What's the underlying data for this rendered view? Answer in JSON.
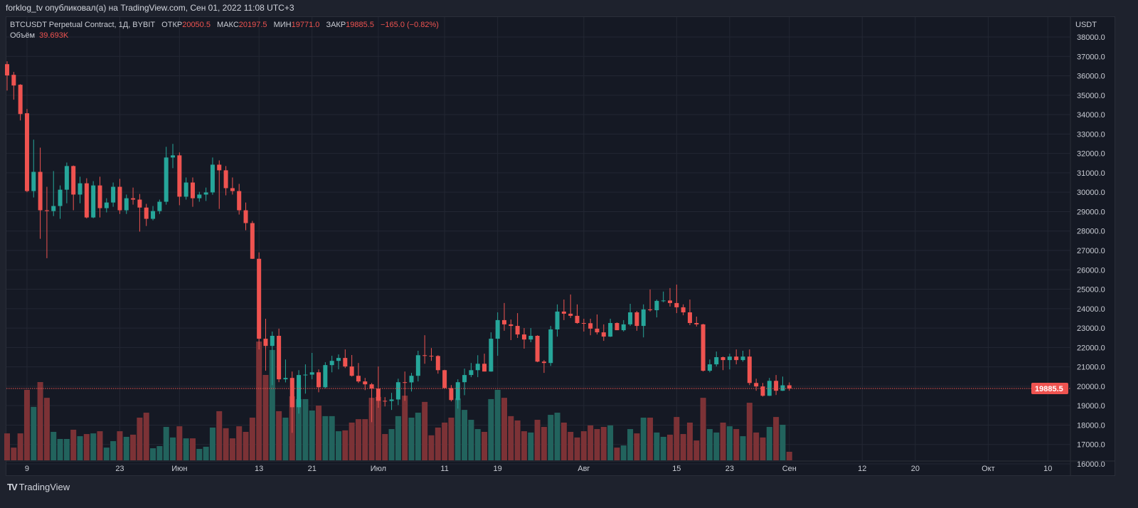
{
  "published_line": "forklog_tv опубликовал(а) на TradingView.com, Сен 01, 2022 11:08 UTC+3",
  "legend": {
    "symbol": "BTCUSDT Perpetual Contract, 1Д, BYBIT",
    "open_label": "ОТКР",
    "open": "20050.5",
    "high_label": "МАКС",
    "high": "20197.5",
    "low_label": "МИН",
    "low": "19771.0",
    "close_label": "ЗАКР",
    "close": "19885.5",
    "change": "−165.0 (−0.82%)",
    "volume_label": "Объём",
    "volume": "39.693K"
  },
  "footer": {
    "logo_glyph": "TV",
    "brand": "TradingView"
  },
  "colors": {
    "up": "#26a69a",
    "down": "#ef5350",
    "up_volume": "#22635d",
    "down_volume": "#7c3236",
    "grid": "#232733",
    "background": "#151924"
  },
  "chart_data": {
    "type": "candlestick",
    "title": "BTCUSDT Perpetual Contract, 1Д, BYBIT",
    "currency_label": "USDT",
    "ylim": [
      16000,
      38000
    ],
    "y_ticks": [
      "16000.0",
      "17000.0",
      "18000.0",
      "19000.0",
      "20000.0",
      "21000.0",
      "22000.0",
      "23000.0",
      "24000.0",
      "25000.0",
      "26000.0",
      "27000.0",
      "28000.0",
      "29000.0",
      "30000.0",
      "31000.0",
      "32000.0",
      "33000.0",
      "34000.0",
      "35000.0",
      "36000.0",
      "37000.0",
      "38000.0"
    ],
    "last_price": 19885.5,
    "last_price_label": "19885.5",
    "x_range_days": [
      0,
      161
    ],
    "x_ticks": [
      {
        "label": "9",
        "index": 3
      },
      {
        "label": "23",
        "index": 17
      },
      {
        "label": "Июн",
        "index": 26
      },
      {
        "label": "13",
        "index": 38
      },
      {
        "label": "21",
        "index": 46
      },
      {
        "label": "Июл",
        "index": 56
      },
      {
        "label": "11",
        "index": 66
      },
      {
        "label": "19",
        "index": 74
      },
      {
        "label": "Авг",
        "index": 87
      },
      {
        "label": "15",
        "index": 101
      },
      {
        "label": "23",
        "index": 109
      },
      {
        "label": "Сен",
        "index": 118
      },
      {
        "label": "12",
        "index": 129
      },
      {
        "label": "20",
        "index": 137
      },
      {
        "label": "Окт",
        "index": 148
      },
      {
        "label": "10",
        "index": 157
      }
    ],
    "ohlc": [
      [
        36600,
        36750,
        35240,
        36020
      ],
      [
        36050,
        36200,
        34770,
        35500
      ],
      [
        35540,
        35570,
        33700,
        34030
      ],
      [
        34070,
        34290,
        30000,
        30060
      ],
      [
        30060,
        32710,
        29730,
        31050
      ],
      [
        31050,
        32300,
        27600,
        29070
      ],
      [
        29070,
        30280,
        26600,
        29030
      ],
      [
        29030,
        31090,
        28770,
        29290
      ],
      [
        29290,
        30350,
        28630,
        30130
      ],
      [
        30130,
        31530,
        29430,
        31350
      ],
      [
        31350,
        31380,
        29070,
        29880
      ],
      [
        29880,
        30800,
        29430,
        30460
      ],
      [
        30460,
        30720,
        28650,
        28700
      ],
      [
        28700,
        30570,
        28660,
        30350
      ],
      [
        30350,
        30800,
        28700,
        29180
      ],
      [
        29180,
        29690,
        28960,
        29470
      ],
      [
        29470,
        30500,
        29250,
        30280
      ],
      [
        30280,
        30690,
        28880,
        29070
      ],
      [
        29070,
        29880,
        28880,
        29690
      ],
      [
        29690,
        30240,
        29360,
        29620
      ],
      [
        29620,
        29910,
        27970,
        29210
      ],
      [
        29210,
        29400,
        28260,
        28630
      ],
      [
        28630,
        29290,
        28550,
        29030
      ],
      [
        29030,
        29620,
        28880,
        29510
      ],
      [
        29510,
        32340,
        29360,
        31790
      ],
      [
        31790,
        32490,
        31240,
        31900
      ],
      [
        31900,
        32050,
        29330,
        29770
      ],
      [
        29770,
        30760,
        29620,
        30500
      ],
      [
        30500,
        30760,
        29250,
        29690
      ],
      [
        29690,
        30020,
        29510,
        29880
      ],
      [
        29880,
        30240,
        29550,
        29990
      ],
      [
        29990,
        31790,
        29870,
        31420
      ],
      [
        31420,
        31640,
        29140,
        31130
      ],
      [
        31130,
        31350,
        29840,
        30210
      ],
      [
        30210,
        30760,
        29880,
        30060
      ],
      [
        30060,
        30430,
        28850,
        29070
      ],
      [
        29070,
        29470,
        28040,
        28410
      ],
      [
        28410,
        28520,
        26560,
        26570
      ],
      [
        26570,
        26900,
        21900,
        22450
      ],
      [
        22450,
        23480,
        20800,
        22080
      ],
      [
        22080,
        22820,
        20060,
        22600
      ],
      [
        22600,
        22970,
        20210,
        20360
      ],
      [
        20360,
        21380,
        20200,
        20430
      ],
      [
        20430,
        20760,
        17600,
        18920
      ],
      [
        18920,
        20830,
        18590,
        20580
      ],
      [
        20580,
        21130,
        19620,
        20600
      ],
      [
        20600,
        21720,
        20360,
        20720
      ],
      [
        20720,
        20870,
        19690,
        19950
      ],
      [
        19950,
        21240,
        19880,
        21090
      ],
      [
        21090,
        21570,
        20720,
        21310
      ],
      [
        21310,
        21640,
        20870,
        21460
      ],
      [
        21460,
        21900,
        20940,
        21020
      ],
      [
        21020,
        21610,
        20500,
        20540
      ],
      [
        20540,
        21200,
        20170,
        20250
      ],
      [
        20250,
        20430,
        19800,
        20100
      ],
      [
        20100,
        20170,
        18150,
        19880
      ],
      [
        19880,
        21020,
        18890,
        19250
      ],
      [
        19250,
        19440,
        18960,
        19240
      ],
      [
        19240,
        19660,
        18780,
        19320
      ],
      [
        19320,
        20390,
        19030,
        20210
      ],
      [
        20210,
        20760,
        19250,
        20200
      ],
      [
        20200,
        20690,
        19730,
        20540
      ],
      [
        20540,
        21830,
        20250,
        21600
      ],
      [
        21600,
        22630,
        21160,
        21570
      ],
      [
        21570,
        21970,
        21310,
        21560
      ],
      [
        21560,
        21600,
        20650,
        20830
      ],
      [
        20830,
        20850,
        19900,
        19910
      ],
      [
        19910,
        20060,
        19220,
        19290
      ],
      [
        19290,
        20360,
        18850,
        20210
      ],
      [
        20210,
        20910,
        19540,
        20580
      ],
      [
        20580,
        21200,
        20470,
        20830
      ],
      [
        20830,
        21600,
        20470,
        21160
      ],
      [
        21160,
        21680,
        20760,
        20760
      ],
      [
        20760,
        22780,
        20750,
        22450
      ],
      [
        22450,
        23810,
        21570,
        23410
      ],
      [
        23410,
        24290,
        22860,
        23190
      ],
      [
        23190,
        23440,
        22380,
        23110
      ],
      [
        23110,
        23770,
        22490,
        22670
      ],
      [
        22670,
        23000,
        21940,
        22410
      ],
      [
        22410,
        23000,
        22270,
        22600
      ],
      [
        22600,
        22630,
        21240,
        21270
      ],
      [
        21270,
        21350,
        20690,
        21200
      ],
      [
        21200,
        23110,
        21050,
        22930
      ],
      [
        22930,
        24220,
        22560,
        23850
      ],
      [
        23850,
        24470,
        23410,
        23740
      ],
      [
        23740,
        24730,
        23520,
        23630
      ],
      [
        23630,
        24220,
        23220,
        23260
      ],
      [
        23260,
        23480,
        22820,
        23250
      ],
      [
        23250,
        23480,
        22630,
        22970
      ],
      [
        22970,
        23700,
        22670,
        22780
      ],
      [
        22780,
        23190,
        22340,
        22560
      ],
      [
        22560,
        23480,
        22540,
        23260
      ],
      [
        23260,
        23290,
        22890,
        22890
      ],
      [
        22890,
        23410,
        22820,
        23190
      ],
      [
        23190,
        24250,
        23110,
        23810
      ],
      [
        23810,
        23880,
        22860,
        23110
      ],
      [
        23110,
        24220,
        22520,
        23960
      ],
      [
        23960,
        24990,
        23850,
        23920
      ],
      [
        23920,
        24470,
        23550,
        24400
      ],
      [
        24400,
        24880,
        24330,
        24420
      ],
      [
        24420,
        25060,
        24110,
        24290
      ],
      [
        24290,
        25240,
        23770,
        24070
      ],
      [
        24070,
        24220,
        23660,
        23810
      ],
      [
        23810,
        24470,
        23150,
        23260
      ],
      [
        23260,
        23590,
        23080,
        23190
      ],
      [
        23190,
        23220,
        20760,
        20800
      ],
      [
        20800,
        21380,
        20720,
        21130
      ],
      [
        21130,
        21790,
        21020,
        21500
      ],
      [
        21500,
        21530,
        20830,
        21350
      ],
      [
        21350,
        21680,
        20870,
        21530
      ],
      [
        21530,
        21900,
        21130,
        21350
      ],
      [
        21350,
        21830,
        21270,
        21530
      ],
      [
        21530,
        21900,
        20060,
        20170
      ],
      [
        20170,
        20390,
        19770,
        19990
      ],
      [
        19990,
        20170,
        19470,
        19510
      ],
      [
        19510,
        20430,
        19500,
        20280
      ],
      [
        20280,
        20580,
        19550,
        19770
      ],
      [
        19770,
        20500,
        19760,
        20050
      ],
      [
        20050.5,
        20197.5,
        19771.0,
        19885.5
      ]
    ],
    "volume_k": [
      125,
      59,
      125,
      327,
      248,
      363,
      290,
      132,
      99,
      99,
      142,
      112,
      122,
      125,
      135,
      59,
      89,
      135,
      109,
      119,
      198,
      221,
      56,
      66,
      155,
      106,
      158,
      102,
      102,
      53,
      63,
      152,
      228,
      149,
      102,
      158,
      132,
      198,
      551,
      396,
      512,
      228,
      198,
      297,
      284,
      284,
      231,
      254,
      205,
      205,
      135,
      139,
      175,
      191,
      191,
      290,
      294,
      122,
      145,
      205,
      300,
      198,
      221,
      271,
      116,
      152,
      175,
      198,
      287,
      234,
      188,
      145,
      132,
      284,
      327,
      290,
      205,
      185,
      135,
      129,
      188,
      155,
      211,
      221,
      175,
      132,
      106,
      135,
      162,
      145,
      155,
      162,
      59,
      69,
      145,
      125,
      198,
      198,
      129,
      109,
      119,
      201,
      122,
      175,
      92,
      290,
      145,
      129,
      175,
      158,
      145,
      112,
      267,
      129,
      106,
      155,
      201,
      165,
      39.693
    ]
  }
}
